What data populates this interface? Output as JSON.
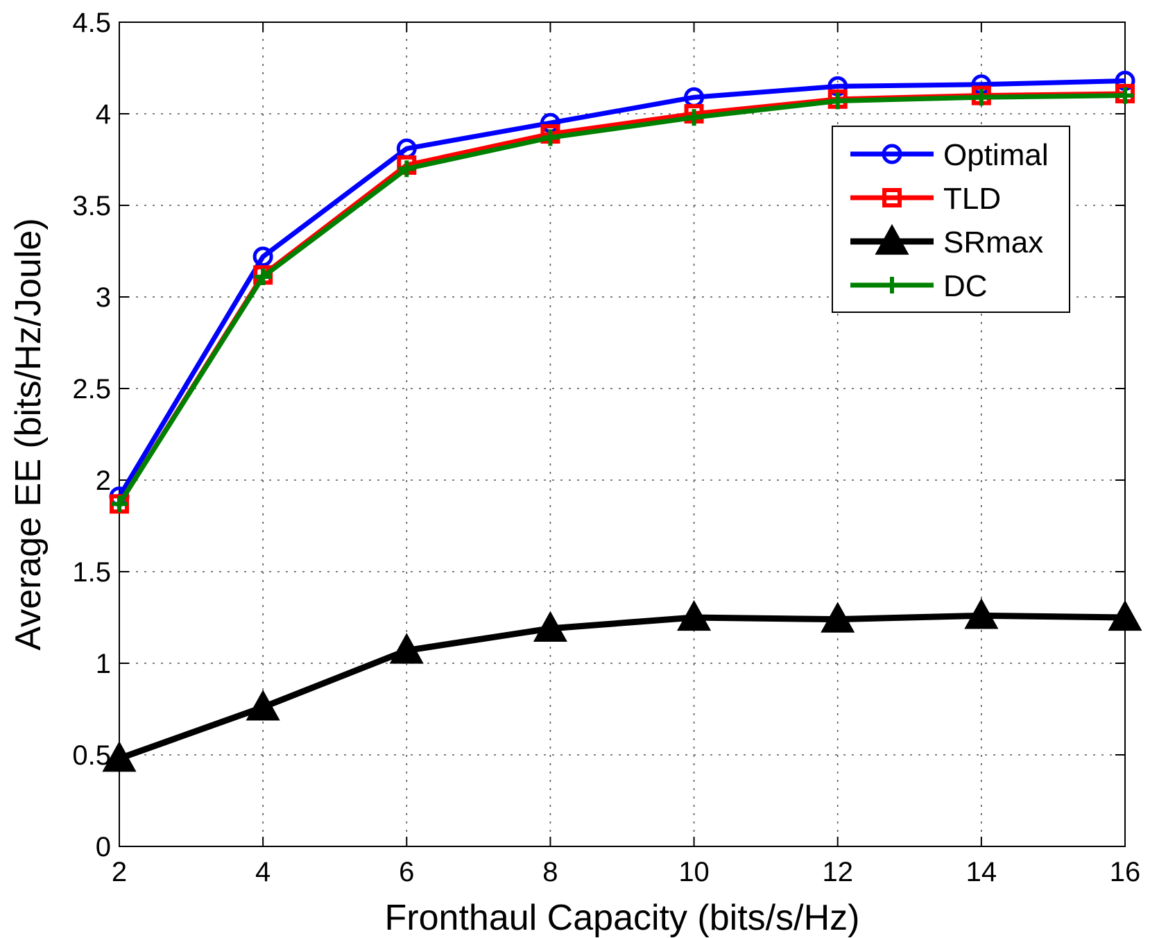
{
  "chart_data": {
    "type": "line",
    "title": "",
    "xlabel": "Fronthaul Capacity (bits/s/Hz)",
    "ylabel": "Average EE (bits/Hz/Joule)",
    "xlim": [
      2,
      16
    ],
    "ylim": [
      0,
      4.5
    ],
    "xticks": [
      2,
      4,
      6,
      8,
      10,
      12,
      14,
      16
    ],
    "yticks": [
      0,
      0.5,
      1,
      1.5,
      2,
      2.5,
      3,
      3.5,
      4,
      4.5
    ],
    "xtick_labels": [
      "2",
      "4",
      "6",
      "8",
      "10",
      "12",
      "14",
      "16"
    ],
    "ytick_labels": [
      "0",
      "0.5",
      "1",
      "1.5",
      "2",
      "2.5",
      "3",
      "3.5",
      "4",
      "4.5"
    ],
    "grid": true,
    "legend_position": "top-right",
    "x": [
      2,
      4,
      6,
      8,
      10,
      12,
      14,
      16
    ],
    "series": [
      {
        "name": "Optimal",
        "color": "#0000ff",
        "marker": "circle",
        "values": [
          1.91,
          3.22,
          3.81,
          3.95,
          4.09,
          4.15,
          4.16,
          4.18
        ]
      },
      {
        "name": "TLD",
        "color": "#ff0000",
        "marker": "square",
        "values": [
          1.87,
          3.12,
          3.72,
          3.89,
          4.0,
          4.08,
          4.1,
          4.11
        ]
      },
      {
        "name": "SRmax",
        "color": "#000000",
        "marker": "triangle",
        "values": [
          0.48,
          0.76,
          1.07,
          1.19,
          1.25,
          1.24,
          1.26,
          1.25
        ]
      },
      {
        "name": "DC",
        "color": "#008000",
        "marker": "plus",
        "values": [
          1.87,
          3.11,
          3.7,
          3.87,
          3.98,
          4.07,
          4.09,
          4.1
        ]
      }
    ]
  }
}
